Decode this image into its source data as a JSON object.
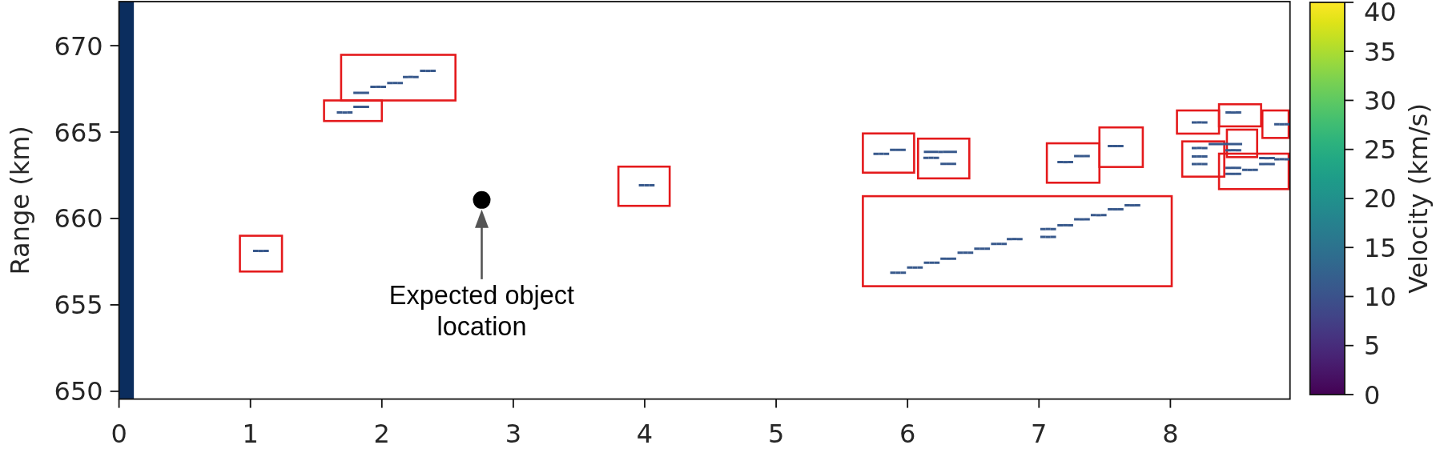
{
  "chart_data": {
    "type": "scatter",
    "ylabel": "Range (km)",
    "clabel": "Velocity (km/s)",
    "xlim": [
      0,
      8.91
    ],
    "ylim": [
      649.55,
      672.55
    ],
    "xticks": [
      0,
      1,
      2,
      3,
      4,
      5,
      6,
      7,
      8
    ],
    "yticks": [
      650,
      655,
      660,
      665,
      670
    ],
    "clim": [
      0,
      40
    ],
    "cticks": [
      0,
      5,
      10,
      15,
      20,
      25,
      30,
      35,
      40
    ],
    "bands": [
      {
        "axis": "x",
        "from": 0,
        "to": 0.113,
        "color": "#0b2d5e"
      }
    ],
    "series": [
      {
        "x": [
          1.08,
          1.717,
          1.843,
          1.843,
          1.972,
          2.1,
          2.22,
          2.35,
          4.015,
          5.8,
          5.926,
          6.25,
          6.18,
          6.31,
          5.928,
          6.056,
          6.184,
          6.31,
          6.44,
          6.567,
          6.695,
          6.815,
          7.07,
          7.07,
          7.2,
          7.327,
          7.454,
          7.583,
          7.711,
          7.2,
          7.327,
          7.583,
          8.222,
          8.479,
          8.85,
          8.222,
          8.222,
          8.222,
          8.418,
          8.479,
          8.735,
          8.85,
          8.735,
          8.479,
          8.606,
          8.479
        ],
        "values": [
          658.12,
          666.13,
          666.46,
          667.27,
          667.62,
          667.84,
          668.19,
          668.54,
          661.92,
          663.74,
          663.97,
          663.85,
          663.51,
          663.16,
          656.86,
          657.16,
          657.44,
          657.67,
          658.02,
          658.25,
          658.53,
          658.81,
          659.39,
          658.93,
          659.61,
          659.95,
          660.19,
          660.53,
          660.76,
          663.26,
          663.61,
          664.19,
          665.56,
          666.13,
          665.45,
          664.08,
          663.59,
          663.15,
          664.31,
          663.95,
          663.49,
          663.43,
          663.15,
          662.93,
          662.81,
          662.58
        ],
        "xerrors": [
          0.06,
          0.06,
          0.06,
          0.06,
          0.06,
          0.06,
          0.06,
          0.06,
          0.06,
          0.06,
          0.06,
          0.126,
          0.06,
          0.06,
          0.06,
          0.06,
          0.06,
          0.06,
          0.06,
          0.06,
          0.06,
          0.06,
          0.06,
          0.06,
          0.06,
          0.06,
          0.06,
          0.06,
          0.06,
          0.06,
          0.06,
          0.06,
          0.06,
          0.06,
          0.06,
          0.06,
          0.06,
          0.06,
          0.128,
          0.06,
          0.06,
          0.06,
          0.06,
          0.06,
          0.06,
          0.06
        ],
        "cvalues": [
          11,
          11,
          11,
          11,
          11,
          11,
          11,
          11,
          11,
          11,
          11,
          11,
          11,
          11,
          11,
          11,
          11,
          11,
          11,
          11,
          11,
          11,
          11,
          11,
          11,
          11,
          11,
          11,
          11,
          11,
          11,
          11,
          11,
          11,
          11,
          11,
          11,
          11,
          11,
          11,
          11,
          11,
          11,
          11,
          11,
          11
        ]
      },
      {
        "type": "scatter",
        "name": "Expected object location",
        "color": "#000000",
        "marker": "circle",
        "x": [
          2.76
        ],
        "values": [
          661.07
        ]
      }
    ]
  }
}
